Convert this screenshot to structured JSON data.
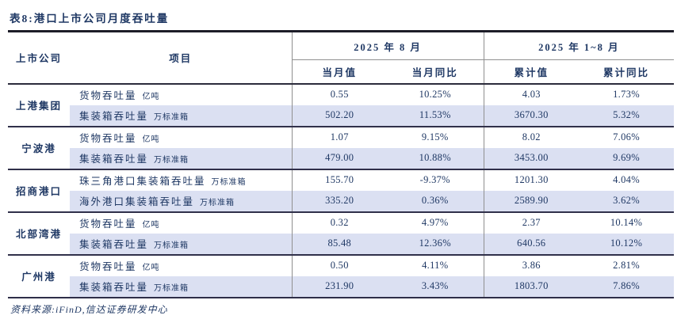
{
  "title": "表8:港口上市公司月度吞吐量",
  "source_note": "资料来源:iFinD,信达证券研发中心",
  "colors": {
    "text_navy": "#1f3864",
    "row_shade": "#dbe0f2",
    "heavy_line": "#2e2e48",
    "gray_line": "#8f8f8f"
  },
  "table": {
    "headers": {
      "company": "上市公司",
      "item": "项目",
      "group_month": "2025 年 8 月",
      "group_cumulative": "2025 年 1~8 月",
      "month_value": "当月值",
      "month_yoy": "当月同比",
      "cum_value": "累计值",
      "cum_yoy": "累计同比"
    },
    "groups": [
      {
        "company": "上港集团",
        "rows": [
          {
            "item": "货物吞吐量",
            "unit": "亿吨",
            "month_value": "0.55",
            "month_yoy": "10.25%",
            "cum_value": "4.03",
            "cum_yoy": "1.73%"
          },
          {
            "item": "集装箱吞吐量",
            "unit": "万标准箱",
            "month_value": "502.20",
            "month_yoy": "11.53%",
            "cum_value": "3670.30",
            "cum_yoy": "5.32%"
          }
        ]
      },
      {
        "company": "宁波港",
        "rows": [
          {
            "item": "货物吞吐量",
            "unit": "亿吨",
            "month_value": "1.07",
            "month_yoy": "9.15%",
            "cum_value": "8.02",
            "cum_yoy": "7.06%"
          },
          {
            "item": "集装箱吞吐量",
            "unit": "万标准箱",
            "month_value": "479.00",
            "month_yoy": "10.88%",
            "cum_value": "3453.00",
            "cum_yoy": "9.69%"
          }
        ]
      },
      {
        "company": "招商港口",
        "rows": [
          {
            "item": "珠三角港口集装箱吞吐量",
            "unit": "万标准箱",
            "month_value": "155.70",
            "month_yoy": "-9.37%",
            "cum_value": "1201.30",
            "cum_yoy": "4.04%"
          },
          {
            "item": "海外港口集装箱吞吐量",
            "unit": "万标准箱",
            "month_value": "335.20",
            "month_yoy": "0.36%",
            "cum_value": "2589.90",
            "cum_yoy": "3.62%"
          }
        ]
      },
      {
        "company": "北部湾港",
        "rows": [
          {
            "item": "货物吞吐量",
            "unit": "亿吨",
            "month_value": "0.32",
            "month_yoy": "4.97%",
            "cum_value": "2.37",
            "cum_yoy": "10.14%"
          },
          {
            "item": "集装箱吞吐量",
            "unit": "万标准箱",
            "month_value": "85.48",
            "month_yoy": "12.36%",
            "cum_value": "640.56",
            "cum_yoy": "10.12%"
          }
        ]
      },
      {
        "company": "广州港",
        "rows": [
          {
            "item": "货物吞吐量",
            "unit": "亿吨",
            "month_value": "0.50",
            "month_yoy": "4.11%",
            "cum_value": "3.86",
            "cum_yoy": "2.81%"
          },
          {
            "item": "集装箱吞吐量",
            "unit": "万标准箱",
            "month_value": "231.90",
            "month_yoy": "3.43%",
            "cum_value": "1803.70",
            "cum_yoy": "7.86%"
          }
        ]
      }
    ]
  }
}
